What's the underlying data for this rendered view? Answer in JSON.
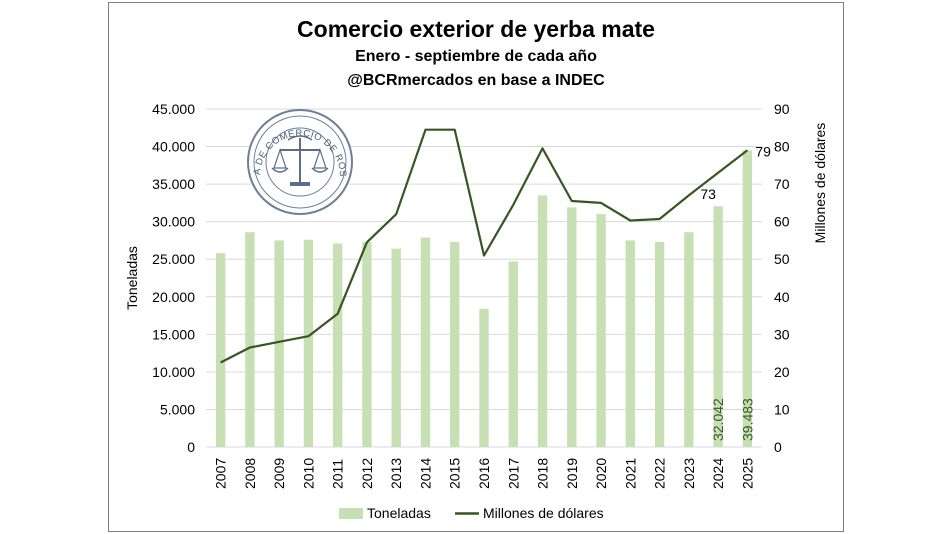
{
  "chart_data": {
    "type": "bar+line",
    "title": "Comercio exterior de yerba mate",
    "subtitle_lines": [
      "Enero - septiembre de cada año",
      "@BCRmercados en base a INDEC"
    ],
    "categories": [
      "2007",
      "2008",
      "2009",
      "2010",
      "2011",
      "2012",
      "2013",
      "2014",
      "2015",
      "2016",
      "2017",
      "2018",
      "2019",
      "2020",
      "2021",
      "2022",
      "2023",
      "2024",
      "2025"
    ],
    "series": [
      {
        "name": "Toneladas",
        "type": "bar",
        "axis": "left",
        "values": [
          25800,
          28600,
          27500,
          27600,
          27100,
          27300,
          26400,
          27900,
          27300,
          18400,
          24700,
          33500,
          31900,
          31000,
          27500,
          27300,
          28600,
          32042,
          39483
        ]
      },
      {
        "name": "Millones de dólares",
        "type": "line",
        "axis": "right",
        "values": [
          22.5,
          26.5,
          28,
          29.5,
          35.5,
          54.5,
          62,
          84.5,
          84.5,
          51,
          64.5,
          79.5,
          65.5,
          65,
          60.3,
          60.7,
          67,
          73,
          79
        ]
      }
    ],
    "ylabel": "Toneladas",
    "y2label": "Millones de dólares",
    "ylim": [
      0,
      45000
    ],
    "y2lim": [
      0,
      90
    ],
    "yticks": [
      "0",
      "5.000",
      "10.000",
      "15.000",
      "20.000",
      "25.000",
      "30.000",
      "35.000",
      "40.000",
      "45.000"
    ],
    "y2ticks": [
      "0",
      "10",
      "20",
      "30",
      "40",
      "50",
      "60",
      "70",
      "80",
      "90"
    ],
    "bar_labels": [
      {
        "index": 17,
        "text": "32.042"
      },
      {
        "index": 18,
        "text": "39.483"
      }
    ],
    "line_labels": [
      {
        "index": 17,
        "text": "73"
      },
      {
        "index": 18,
        "text": "79"
      }
    ],
    "legend_position": "bottom",
    "grid": "horizontal",
    "colors": {
      "bar": "#c6e0b4",
      "line": "#375623",
      "grid": "#d9d9d9",
      "bar_label": "#375623"
    },
    "logo": {
      "text": "BOLSA DE COMERCIO DE ROSARIO"
    }
  }
}
